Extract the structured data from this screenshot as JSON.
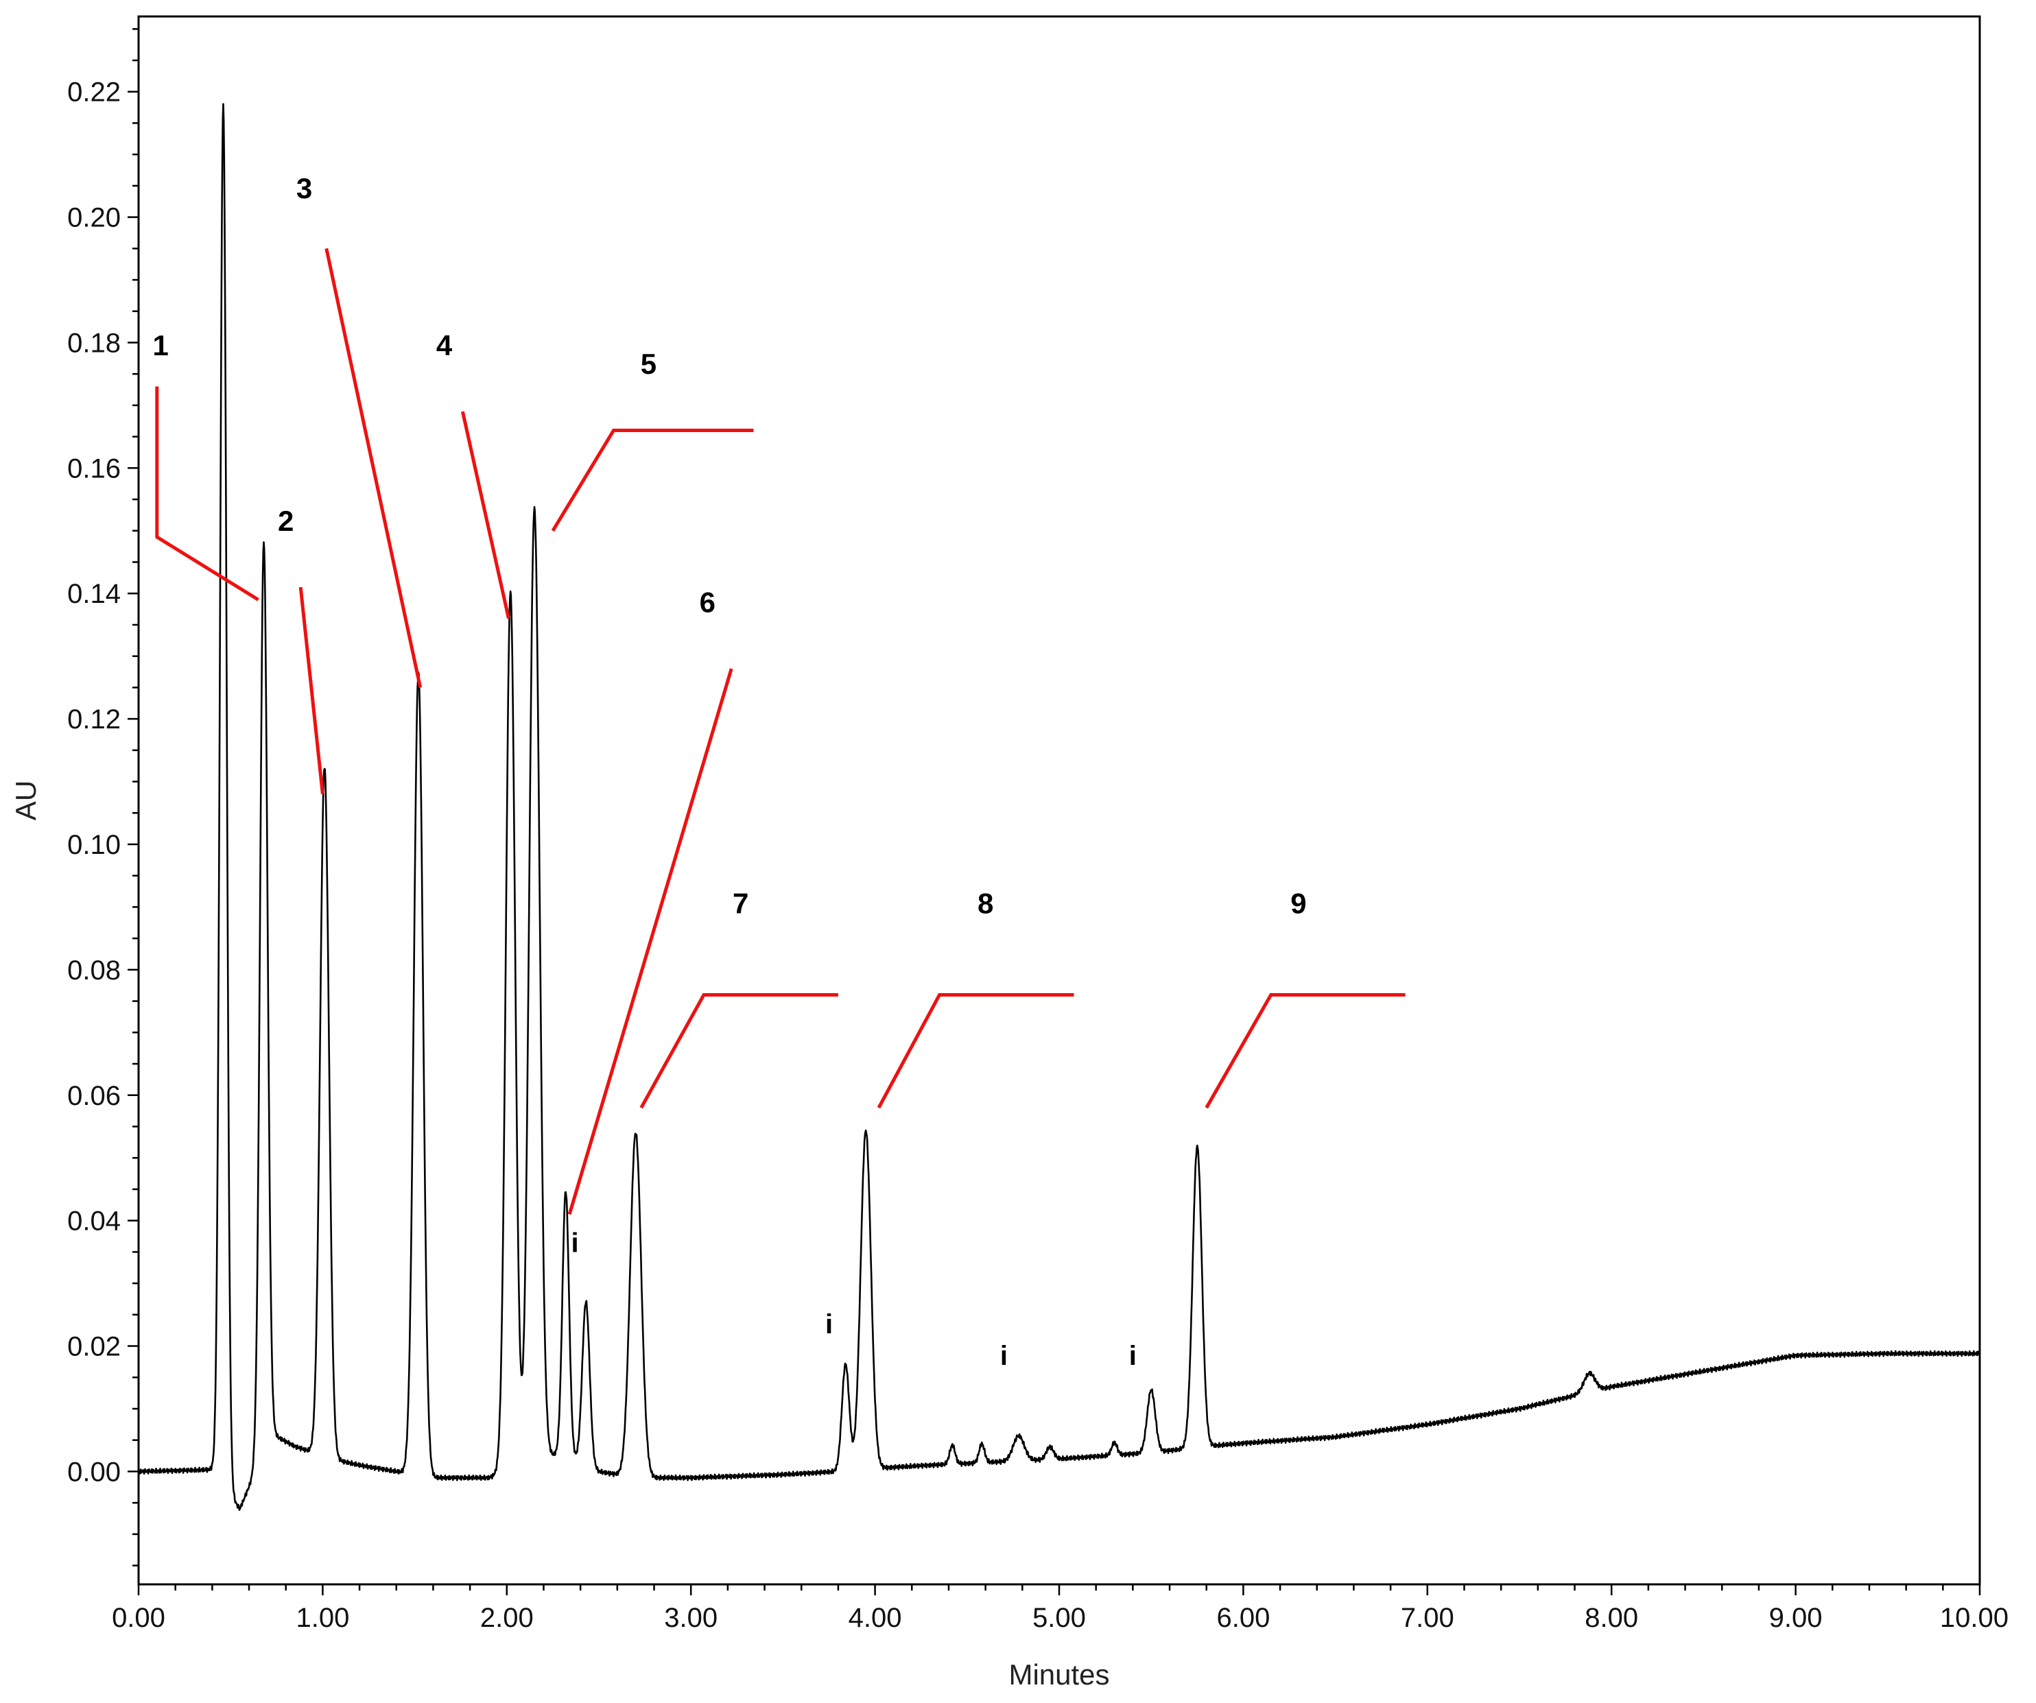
{
  "chart_data": {
    "type": "line",
    "xlabel": "Minutes",
    "ylabel": "AU",
    "xlim": [
      0.0,
      10.0
    ],
    "ylim": [
      -0.018,
      0.232
    ],
    "x_ticks": [
      "0.00",
      "1.00",
      "2.00",
      "3.00",
      "4.00",
      "5.00",
      "6.00",
      "7.00",
      "8.00",
      "9.00",
      "10.00"
    ],
    "y_ticks": [
      "0.00",
      "0.02",
      "0.04",
      "0.06",
      "0.08",
      "0.10",
      "0.12",
      "0.14",
      "0.16",
      "0.18",
      "0.20",
      "0.22"
    ],
    "x_tick_values": [
      0,
      1,
      2,
      3,
      4,
      5,
      6,
      7,
      8,
      9,
      10
    ],
    "y_tick_values": [
      0,
      0.02,
      0.04,
      0.06,
      0.08,
      0.1,
      0.12,
      0.14,
      0.16,
      0.18,
      0.2,
      0.22
    ],
    "baseline": [
      [
        0.0,
        0.0
      ],
      [
        0.3,
        0.0002
      ],
      [
        0.4,
        0.0003
      ],
      [
        0.5,
        -0.004
      ],
      [
        0.55,
        -0.006
      ],
      [
        0.62,
        -0.001
      ],
      [
        0.72,
        0.006
      ],
      [
        0.85,
        0.004
      ],
      [
        1.05,
        0.002
      ],
      [
        1.2,
        0.001
      ],
      [
        1.4,
        0.0
      ],
      [
        1.6,
        -0.001
      ],
      [
        1.9,
        -0.001
      ],
      [
        2.0,
        0.0
      ],
      [
        2.3,
        0.003
      ],
      [
        2.5,
        0.0
      ],
      [
        2.7,
        -0.001
      ],
      [
        3.0,
        -0.001
      ],
      [
        3.5,
        -0.0005
      ],
      [
        3.8,
        0.0
      ],
      [
        4.0,
        0.0005
      ],
      [
        4.3,
        0.001
      ],
      [
        5.0,
        0.002
      ],
      [
        5.5,
        0.003
      ],
      [
        5.8,
        0.004
      ],
      [
        6.0,
        0.0045
      ],
      [
        6.5,
        0.0055
      ],
      [
        7.0,
        0.0075
      ],
      [
        7.5,
        0.01
      ],
      [
        8.0,
        0.0135
      ],
      [
        8.5,
        0.016
      ],
      [
        9.0,
        0.0185
      ],
      [
        9.5,
        0.0188
      ],
      [
        10.0,
        0.0188
      ]
    ],
    "peaks": [
      {
        "rt": 0.46,
        "height": 0.22,
        "width": 0.018
      },
      {
        "rt": 0.68,
        "height": 0.145,
        "width": 0.02
      },
      {
        "rt": 1.01,
        "height": 0.11,
        "width": 0.024
      },
      {
        "rt": 1.52,
        "height": 0.128,
        "width": 0.025
      },
      {
        "rt": 2.02,
        "height": 0.14,
        "width": 0.025
      },
      {
        "rt": 2.15,
        "height": 0.152,
        "width": 0.028
      },
      {
        "rt": 2.32,
        "height": 0.042,
        "width": 0.018
      },
      {
        "rt": 2.43,
        "height": 0.026,
        "width": 0.02
      },
      {
        "rt": 2.7,
        "height": 0.055,
        "width": 0.03
      },
      {
        "rt": 3.84,
        "height": 0.017,
        "width": 0.02
      },
      {
        "rt": 3.95,
        "height": 0.054,
        "width": 0.028
      },
      {
        "rt": 4.42,
        "height": 0.003,
        "width": 0.015
      },
      {
        "rt": 4.58,
        "height": 0.003,
        "width": 0.015
      },
      {
        "rt": 4.78,
        "height": 0.004,
        "width": 0.03
      },
      {
        "rt": 4.95,
        "height": 0.002,
        "width": 0.02
      },
      {
        "rt": 5.3,
        "height": 0.002,
        "width": 0.015
      },
      {
        "rt": 5.5,
        "height": 0.01,
        "width": 0.022
      },
      {
        "rt": 5.75,
        "height": 0.048,
        "width": 0.025
      },
      {
        "rt": 7.88,
        "height": 0.003,
        "width": 0.03
      }
    ],
    "peak_labels": [
      {
        "text": "1",
        "x": 0.12,
        "y": 0.178,
        "line": [
          [
            0.1,
            0.173
          ],
          [
            0.1,
            0.149
          ],
          [
            0.65,
            0.139
          ]
        ]
      },
      {
        "text": "2",
        "x": 0.8,
        "y": 0.15,
        "line": [
          [
            0.88,
            0.141
          ],
          [
            1.0,
            0.108
          ]
        ]
      },
      {
        "text": "3",
        "x": 0.9,
        "y": 0.203,
        "line": [
          [
            1.02,
            0.195
          ],
          [
            1.53,
            0.125
          ]
        ]
      },
      {
        "text": "4",
        "x": 1.66,
        "y": 0.178,
        "line": [
          [
            1.76,
            0.169
          ],
          [
            2.01,
            0.136
          ]
        ]
      },
      {
        "text": "5",
        "x": 2.77,
        "y": 0.175,
        "line": [
          [
            3.34,
            0.166
          ],
          [
            2.58,
            0.166
          ],
          [
            2.25,
            0.15
          ]
        ]
      },
      {
        "text": "6",
        "x": 3.09,
        "y": 0.137,
        "line": [
          [
            3.22,
            0.128
          ],
          [
            2.34,
            0.041
          ]
        ]
      },
      {
        "text": "7",
        "x": 3.27,
        "y": 0.089,
        "line": [
          [
            3.8,
            0.076
          ],
          [
            3.07,
            0.076
          ],
          [
            2.73,
            0.058
          ]
        ]
      },
      {
        "text": "8",
        "x": 4.6,
        "y": 0.089,
        "line": [
          [
            5.08,
            0.076
          ],
          [
            4.35,
            0.076
          ],
          [
            4.02,
            0.058
          ]
        ]
      },
      {
        "text": "9",
        "x": 6.3,
        "y": 0.089,
        "line": [
          [
            6.88,
            0.076
          ],
          [
            6.15,
            0.076
          ],
          [
            5.8,
            0.058
          ]
        ]
      }
    ],
    "impurity_labels": [
      {
        "text": "i",
        "x": 2.37,
        "y": 0.035
      },
      {
        "text": "i",
        "x": 3.75,
        "y": 0.022
      },
      {
        "text": "i",
        "x": 4.7,
        "y": 0.017
      },
      {
        "text": "i",
        "x": 5.4,
        "y": 0.017
      }
    ],
    "colors": {
      "trace": "#000000",
      "marker_line": "#ee1111",
      "axis": "#000000"
    }
  }
}
